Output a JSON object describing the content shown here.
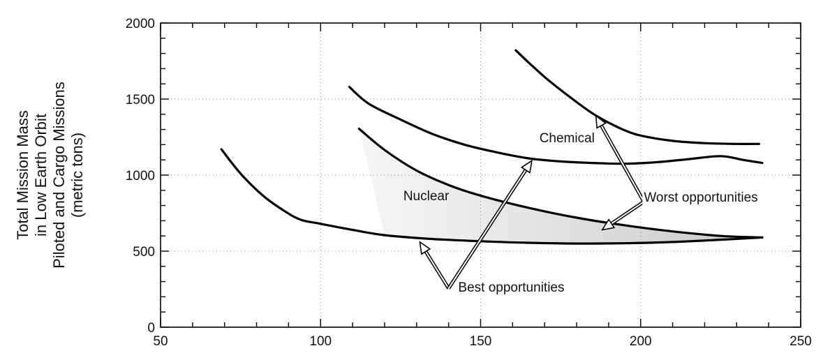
{
  "chart_data": {
    "type": "line",
    "title": "",
    "xlabel": "",
    "ylabel": "Total Mission Mass in Low Earth Orbit Piloted and Cargo Missions (metric tons)",
    "ylabel_lines": [
      "Total Mission Mass",
      "in Low Earth Orbit",
      "Piloted and Cargo Missions",
      "(metric tons)"
    ],
    "xlim": [
      50,
      250
    ],
    "ylim": [
      0,
      2000
    ],
    "xticks": [
      50,
      100,
      150,
      200,
      250
    ],
    "yticks": [
      0,
      500,
      1000,
      1500,
      2000
    ],
    "xtick_labels": [
      "50",
      "100",
      "150",
      "200",
      "250"
    ],
    "ytick_labels": [
      "0",
      "500",
      "1000",
      "1500",
      "2000"
    ],
    "grid": true,
    "series": [
      {
        "group": "Nuclear",
        "x": [
          69,
          75,
          82,
          89,
          94,
          100,
          110,
          120,
          135,
          150,
          165,
          180,
          195,
          210,
          225,
          238
        ],
        "y": [
          1170,
          1010,
          865,
          760,
          705,
          680,
          640,
          605,
          580,
          565,
          555,
          550,
          552,
          560,
          575,
          590
        ]
      },
      {
        "group": "Nuclear",
        "x": [
          112,
          120,
          130,
          140,
          150,
          165,
          180,
          195,
          210,
          225,
          238
        ],
        "y": [
          1305,
          1165,
          1030,
          935,
          865,
          785,
          720,
          670,
          630,
          600,
          590
        ]
      },
      {
        "group": "Chemical",
        "x": [
          109,
          115,
          125,
          135,
          145,
          155,
          165,
          175,
          185,
          195,
          205,
          215,
          225,
          232,
          238
        ],
        "y": [
          1580,
          1470,
          1365,
          1270,
          1200,
          1150,
          1110,
          1090,
          1080,
          1075,
          1085,
          1105,
          1125,
          1100,
          1080
        ]
      },
      {
        "group": "Chemical",
        "x": [
          161,
          165,
          170,
          175,
          180,
          185,
          190,
          195,
          200,
          210,
          220,
          230,
          237
        ],
        "y": [
          1820,
          1740,
          1645,
          1560,
          1480,
          1405,
          1345,
          1295,
          1260,
          1225,
          1210,
          1205,
          1205
        ]
      }
    ],
    "region_labels": [
      {
        "text": "Chemical",
        "x": 177,
        "y": 1215
      },
      {
        "text": "Nuclear",
        "x": 133,
        "y": 835
      }
    ],
    "annotations": [
      {
        "text": "Best opportunities",
        "x": 143,
        "y": 235,
        "arrow_from": [
          140,
          255
        ],
        "arrow_to": [
          [
            131,
            560
          ],
          [
            166,
            1095
          ]
        ]
      },
      {
        "text": "Worst opportunities",
        "x": 201,
        "y": 825,
        "arrow_from": [
          201,
          825
        ],
        "arrow_to": [
          [
            186,
            1390
          ],
          [
            188,
            640
          ]
        ]
      }
    ]
  }
}
